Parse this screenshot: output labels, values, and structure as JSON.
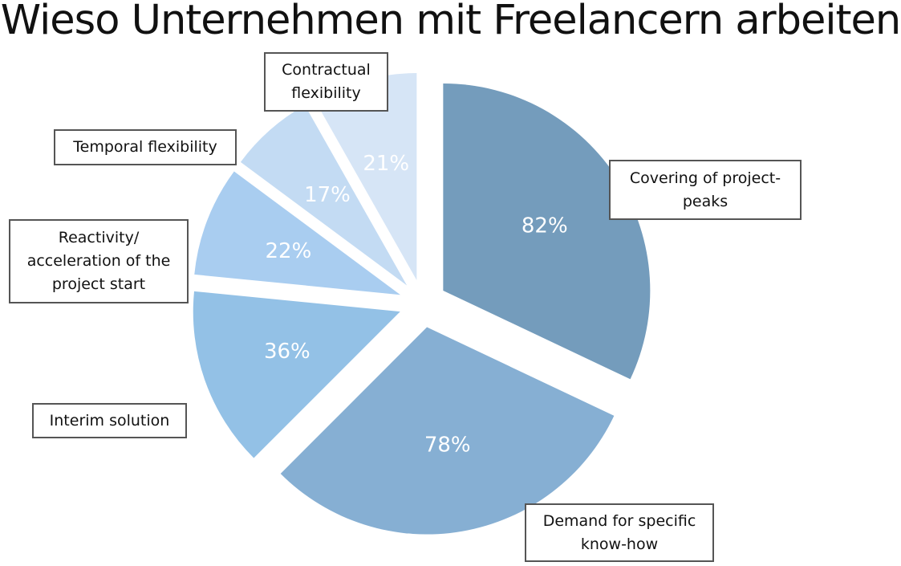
{
  "chart_data": {
    "type": "pie",
    "title": "Wieso Unternehmen mit Freelancern arbeiten",
    "slices": [
      {
        "label": "Covering of project-peaks",
        "value": 82,
        "value_label": "82%",
        "color": "#749cbc",
        "label_color": "#ffffff"
      },
      {
        "label": "Demand for specific know-how",
        "value": 78,
        "value_label": "78%",
        "color": "#86afd3",
        "label_color": "#ffffff"
      },
      {
        "label": "Interim solution",
        "value": 36,
        "value_label": "36%",
        "color": "#93c1e6",
        "label_color": "#ffffff"
      },
      {
        "label": "Reactivity/ acceleration of the project start",
        "value": 22,
        "value_label": "22%",
        "color": "#a9cdf0",
        "label_color": "#ffffff"
      },
      {
        "label": "Temporal flexibility",
        "value": 17,
        "value_label": "17%",
        "color": "#c3dbf3",
        "label_color": "#ffffff"
      },
      {
        "label": "Contractual flexibility",
        "value": 21,
        "value_label": "21%",
        "color": "#d6e5f6",
        "label_color": "#ffffff"
      }
    ],
    "legend": "callout boxes"
  },
  "callouts": {
    "covering": "Covering of project-peaks",
    "demand": "Demand for specific know-how",
    "interim": "Interim solution",
    "reactivity": "Reactivity/ acceleration of the project start",
    "temporal": "Temporal flexibility",
    "contractual": "Contractual flexibility"
  }
}
